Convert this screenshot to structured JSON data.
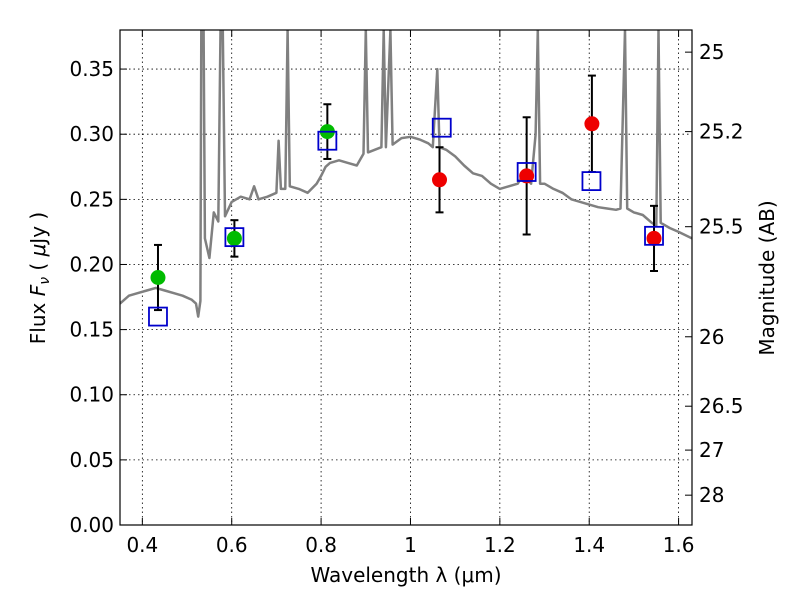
{
  "chart_data": {
    "type": "scatter",
    "xlabel": "Wavelength  λ (μm)",
    "ylabel": "Flux  Fν  ( μJy )",
    "y2label": "Magnitude (AB)",
    "xlim": [
      0.35,
      1.63
    ],
    "ylim": [
      0.0,
      0.38
    ],
    "x_ticks": [
      0.4,
      0.6,
      0.8,
      1.0,
      1.2,
      1.4,
      1.6
    ],
    "x_tick_labels": [
      "0.4",
      "0.6",
      "0.8",
      "1",
      "1.2",
      "1.4",
      "1.6"
    ],
    "y_ticks": [
      0.0,
      0.05,
      0.1,
      0.15,
      0.2,
      0.25,
      0.3,
      0.35
    ],
    "y_tick_labels": [
      "0.00",
      "0.05",
      "0.10",
      "0.15",
      "0.20",
      "0.25",
      "0.30",
      "0.35"
    ],
    "y2_ticks": [
      {
        "label": "25",
        "flux": 0.363
      },
      {
        "label": "25.2",
        "flux": 0.302
      },
      {
        "label": "25.5",
        "flux": 0.229
      },
      {
        "label": "26",
        "flux": 0.1445
      },
      {
        "label": "26.5",
        "flux": 0.0912
      },
      {
        "label": "27",
        "flux": 0.0575
      },
      {
        "label": "28",
        "flux": 0.0229
      }
    ],
    "grid": true,
    "colors": {
      "model": "#808080",
      "observed_optical": "#00bb00",
      "observed_nir": "#ee0000",
      "model_photometry": "#0000cc",
      "errorbar": "#000000"
    },
    "series": [
      {
        "kind": "model_spectrum",
        "points": [
          [
            0.35,
            0.17
          ],
          [
            0.37,
            0.176
          ],
          [
            0.39,
            0.178
          ],
          [
            0.41,
            0.18
          ],
          [
            0.43,
            0.182
          ],
          [
            0.45,
            0.18
          ],
          [
            0.47,
            0.178
          ],
          [
            0.49,
            0.176
          ],
          [
            0.51,
            0.173
          ],
          [
            0.52,
            0.17
          ],
          [
            0.525,
            0.16
          ],
          [
            0.53,
            0.172
          ],
          [
            0.532,
            0.38
          ],
          [
            0.537,
            0.38
          ],
          [
            0.54,
            0.22
          ],
          [
            0.55,
            0.205
          ],
          [
            0.56,
            0.24
          ],
          [
            0.57,
            0.233
          ],
          [
            0.575,
            0.38
          ],
          [
            0.58,
            0.38
          ],
          [
            0.585,
            0.237
          ],
          [
            0.6,
            0.248
          ],
          [
            0.62,
            0.252
          ],
          [
            0.64,
            0.25
          ],
          [
            0.65,
            0.26
          ],
          [
            0.66,
            0.25
          ],
          [
            0.68,
            0.252
          ],
          [
            0.7,
            0.255
          ],
          [
            0.705,
            0.295
          ],
          [
            0.71,
            0.258
          ],
          [
            0.72,
            0.258
          ],
          [
            0.725,
            0.38
          ],
          [
            0.73,
            0.26
          ],
          [
            0.75,
            0.258
          ],
          [
            0.77,
            0.255
          ],
          [
            0.79,
            0.262
          ],
          [
            0.8,
            0.268
          ],
          [
            0.81,
            0.275
          ],
          [
            0.82,
            0.278
          ],
          [
            0.84,
            0.28
          ],
          [
            0.86,
            0.278
          ],
          [
            0.88,
            0.276
          ],
          [
            0.895,
            0.285
          ],
          [
            0.9,
            0.38
          ],
          [
            0.905,
            0.286
          ],
          [
            0.92,
            0.288
          ],
          [
            0.935,
            0.29
          ],
          [
            0.94,
            0.38
          ],
          [
            0.945,
            0.29
          ],
          [
            0.955,
            0.38
          ],
          [
            0.96,
            0.292
          ],
          [
            0.98,
            0.297
          ],
          [
            1.0,
            0.298
          ],
          [
            1.02,
            0.296
          ],
          [
            1.04,
            0.293
          ],
          [
            1.05,
            0.29
          ],
          [
            1.06,
            0.35
          ],
          [
            1.065,
            0.29
          ],
          [
            1.08,
            0.288
          ],
          [
            1.1,
            0.283
          ],
          [
            1.12,
            0.276
          ],
          [
            1.14,
            0.27
          ],
          [
            1.16,
            0.268
          ],
          [
            1.18,
            0.262
          ],
          [
            1.2,
            0.258
          ],
          [
            1.22,
            0.26
          ],
          [
            1.24,
            0.262
          ],
          [
            1.25,
            0.268
          ],
          [
            1.26,
            0.266
          ],
          [
            1.27,
            0.262
          ],
          [
            1.28,
            0.3
          ],
          [
            1.285,
            0.38
          ],
          [
            1.29,
            0.262
          ],
          [
            1.3,
            0.262
          ],
          [
            1.32,
            0.258
          ],
          [
            1.34,
            0.255
          ],
          [
            1.36,
            0.25
          ],
          [
            1.38,
            0.248
          ],
          [
            1.4,
            0.246
          ],
          [
            1.42,
            0.244
          ],
          [
            1.44,
            0.243
          ],
          [
            1.46,
            0.242
          ],
          [
            1.47,
            0.243
          ],
          [
            1.48,
            0.38
          ],
          [
            1.485,
            0.243
          ],
          [
            1.5,
            0.24
          ],
          [
            1.52,
            0.238
          ],
          [
            1.54,
            0.232
          ],
          [
            1.55,
            0.23
          ],
          [
            1.555,
            0.38
          ],
          [
            1.56,
            0.232
          ],
          [
            1.58,
            0.228
          ],
          [
            1.6,
            0.225
          ],
          [
            1.63,
            0.22
          ]
        ]
      },
      {
        "kind": "observed_optical",
        "points": [
          {
            "x": 0.435,
            "y": 0.19,
            "err": 0.025
          },
          {
            "x": 0.606,
            "y": 0.22,
            "err": 0.014
          },
          {
            "x": 0.814,
            "y": 0.302,
            "err": 0.021
          }
        ]
      },
      {
        "kind": "observed_nir",
        "points": [
          {
            "x": 1.065,
            "y": 0.265,
            "err": 0.025
          },
          {
            "x": 1.26,
            "y": 0.268,
            "err": 0.045
          },
          {
            "x": 1.406,
            "y": 0.308,
            "err": 0.037
          },
          {
            "x": 1.545,
            "y": 0.22,
            "err": 0.025
          }
        ]
      },
      {
        "kind": "model_photometry",
        "points": [
          {
            "x": 0.435,
            "y": 0.16
          },
          {
            "x": 0.606,
            "y": 0.221
          },
          {
            "x": 0.814,
            "y": 0.295
          },
          {
            "x": 1.07,
            "y": 0.305
          },
          {
            "x": 1.26,
            "y": 0.271
          },
          {
            "x": 1.405,
            "y": 0.264
          },
          {
            "x": 1.545,
            "y": 0.222
          }
        ]
      }
    ]
  }
}
